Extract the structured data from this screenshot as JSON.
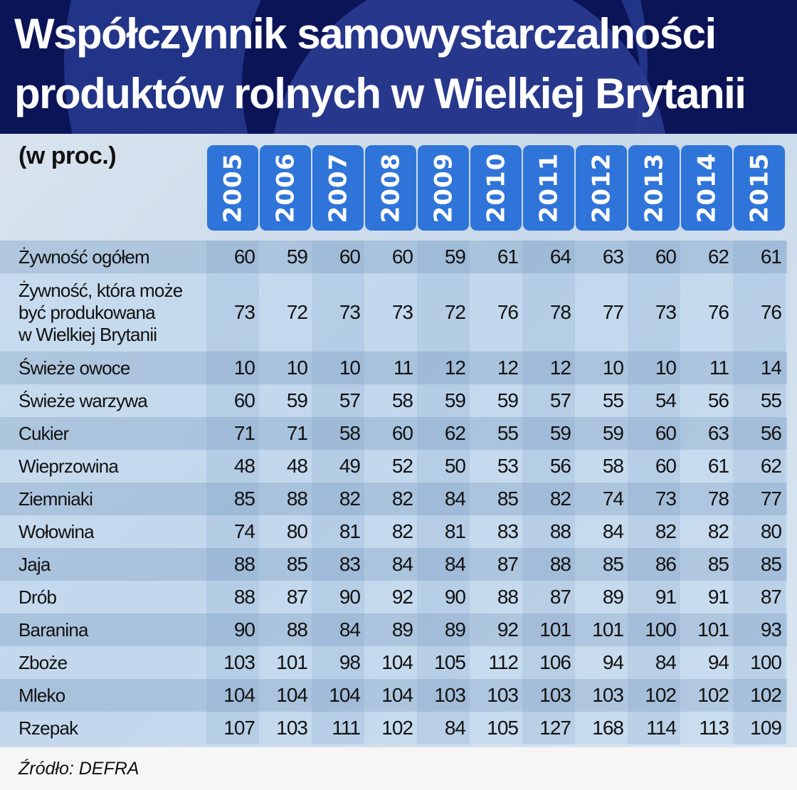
{
  "title": {
    "line1": "Współczynnik samowystarczalności",
    "line2": "produktów rolnych w Wielkiej Brytanii"
  },
  "unit_label": "(w proc.)",
  "years": [
    "2005",
    "2006",
    "2007",
    "2008",
    "2009",
    "2010",
    "2011",
    "2012",
    "2013",
    "2014",
    "2015"
  ],
  "rows": [
    {
      "label": "Żywność ogółem",
      "values": [
        60,
        59,
        60,
        60,
        59,
        61,
        64,
        63,
        60,
        62,
        61
      ]
    },
    {
      "label": "Żywność, która może być produkowana w Wielkiej Brytanii",
      "lines": [
        "Żywność, która może",
        "być produkowana",
        "w Wielkiej Brytanii"
      ],
      "values": [
        73,
        72,
        73,
        73,
        72,
        76,
        78,
        77,
        73,
        76,
        76
      ]
    },
    {
      "label": "Świeże owoce",
      "values": [
        10,
        10,
        10,
        11,
        12,
        12,
        12,
        10,
        10,
        11,
        14
      ]
    },
    {
      "label": "Świeże warzywa",
      "values": [
        60,
        59,
        57,
        58,
        59,
        59,
        57,
        55,
        54,
        56,
        55
      ]
    },
    {
      "label": "Cukier",
      "values": [
        71,
        71,
        58,
        60,
        62,
        55,
        59,
        59,
        60,
        63,
        56
      ]
    },
    {
      "label": "Wieprzowina",
      "values": [
        48,
        48,
        49,
        52,
        50,
        53,
        56,
        58,
        60,
        61,
        62
      ]
    },
    {
      "label": "Ziemniaki",
      "values": [
        85,
        88,
        82,
        82,
        84,
        85,
        82,
        74,
        73,
        78,
        77
      ]
    },
    {
      "label": "Wołowina",
      "values": [
        74,
        80,
        81,
        82,
        81,
        83,
        88,
        84,
        82,
        82,
        80
      ]
    },
    {
      "label": "Jaja",
      "values": [
        88,
        85,
        83,
        84,
        84,
        87,
        88,
        85,
        86,
        85,
        85
      ]
    },
    {
      "label": "Drób",
      "values": [
        88,
        87,
        90,
        92,
        90,
        88,
        87,
        89,
        91,
        91,
        87
      ]
    },
    {
      "label": "Baranina",
      "values": [
        90,
        88,
        84,
        89,
        89,
        92,
        101,
        101,
        100,
        101,
        93
      ]
    },
    {
      "label": "Zboże",
      "values": [
        103,
        101,
        98,
        104,
        105,
        112,
        106,
        94,
        84,
        94,
        100
      ]
    },
    {
      "label": "Mleko",
      "values": [
        104,
        104,
        104,
        104,
        103,
        103,
        103,
        103,
        102,
        102,
        102
      ]
    },
    {
      "label": "Rzepak",
      "values": [
        107,
        103,
        111,
        102,
        84,
        105,
        127,
        168,
        114,
        113,
        109
      ]
    }
  ],
  "source": "Źródło:  DEFRA",
  "colors": {
    "banner": "#0b1457",
    "year_header": "#2f74d9",
    "row_dark": "#a3bfdb",
    "row_light": "#c3d8ec"
  },
  "chart_data": {
    "type": "table",
    "title": "Współczynnik samowystarczalności produktów rolnych w Wielkiej Brytanii",
    "subtitle": "(w proc.)",
    "columns": [
      "2005",
      "2006",
      "2007",
      "2008",
      "2009",
      "2010",
      "2011",
      "2012",
      "2013",
      "2014",
      "2015"
    ],
    "series": [
      {
        "name": "Żywność ogółem",
        "values": [
          60,
          59,
          60,
          60,
          59,
          61,
          64,
          63,
          60,
          62,
          61
        ]
      },
      {
        "name": "Żywność, która może być produkowana w Wielkiej Brytanii",
        "values": [
          73,
          72,
          73,
          73,
          72,
          76,
          78,
          77,
          73,
          76,
          76
        ]
      },
      {
        "name": "Świeże owoce",
        "values": [
          10,
          10,
          10,
          11,
          12,
          12,
          12,
          10,
          10,
          11,
          14
        ]
      },
      {
        "name": "Świeże warzywa",
        "values": [
          60,
          59,
          57,
          58,
          59,
          59,
          57,
          55,
          54,
          56,
          55
        ]
      },
      {
        "name": "Cukier",
        "values": [
          71,
          71,
          58,
          60,
          62,
          55,
          59,
          59,
          60,
          63,
          56
        ]
      },
      {
        "name": "Wieprzowina",
        "values": [
          48,
          48,
          49,
          52,
          50,
          53,
          56,
          58,
          60,
          61,
          62
        ]
      },
      {
        "name": "Ziemniaki",
        "values": [
          85,
          88,
          82,
          82,
          84,
          85,
          82,
          74,
          73,
          78,
          77
        ]
      },
      {
        "name": "Wołowina",
        "values": [
          74,
          80,
          81,
          82,
          81,
          83,
          88,
          84,
          82,
          82,
          80
        ]
      },
      {
        "name": "Jaja",
        "values": [
          88,
          85,
          83,
          84,
          84,
          87,
          88,
          85,
          86,
          85,
          85
        ]
      },
      {
        "name": "Drób",
        "values": [
          88,
          87,
          90,
          92,
          90,
          88,
          87,
          89,
          91,
          91,
          87
        ]
      },
      {
        "name": "Baranina",
        "values": [
          90,
          88,
          84,
          89,
          89,
          92,
          101,
          101,
          100,
          101,
          93
        ]
      },
      {
        "name": "Zboże",
        "values": [
          103,
          101,
          98,
          104,
          105,
          112,
          106,
          94,
          84,
          94,
          100
        ]
      },
      {
        "name": "Mleko",
        "values": [
          104,
          104,
          104,
          104,
          103,
          103,
          103,
          103,
          102,
          102,
          102
        ]
      },
      {
        "name": "Rzepak",
        "values": [
          107,
          103,
          111,
          102,
          84,
          105,
          127,
          168,
          114,
          113,
          109
        ]
      }
    ],
    "source": "DEFRA"
  }
}
